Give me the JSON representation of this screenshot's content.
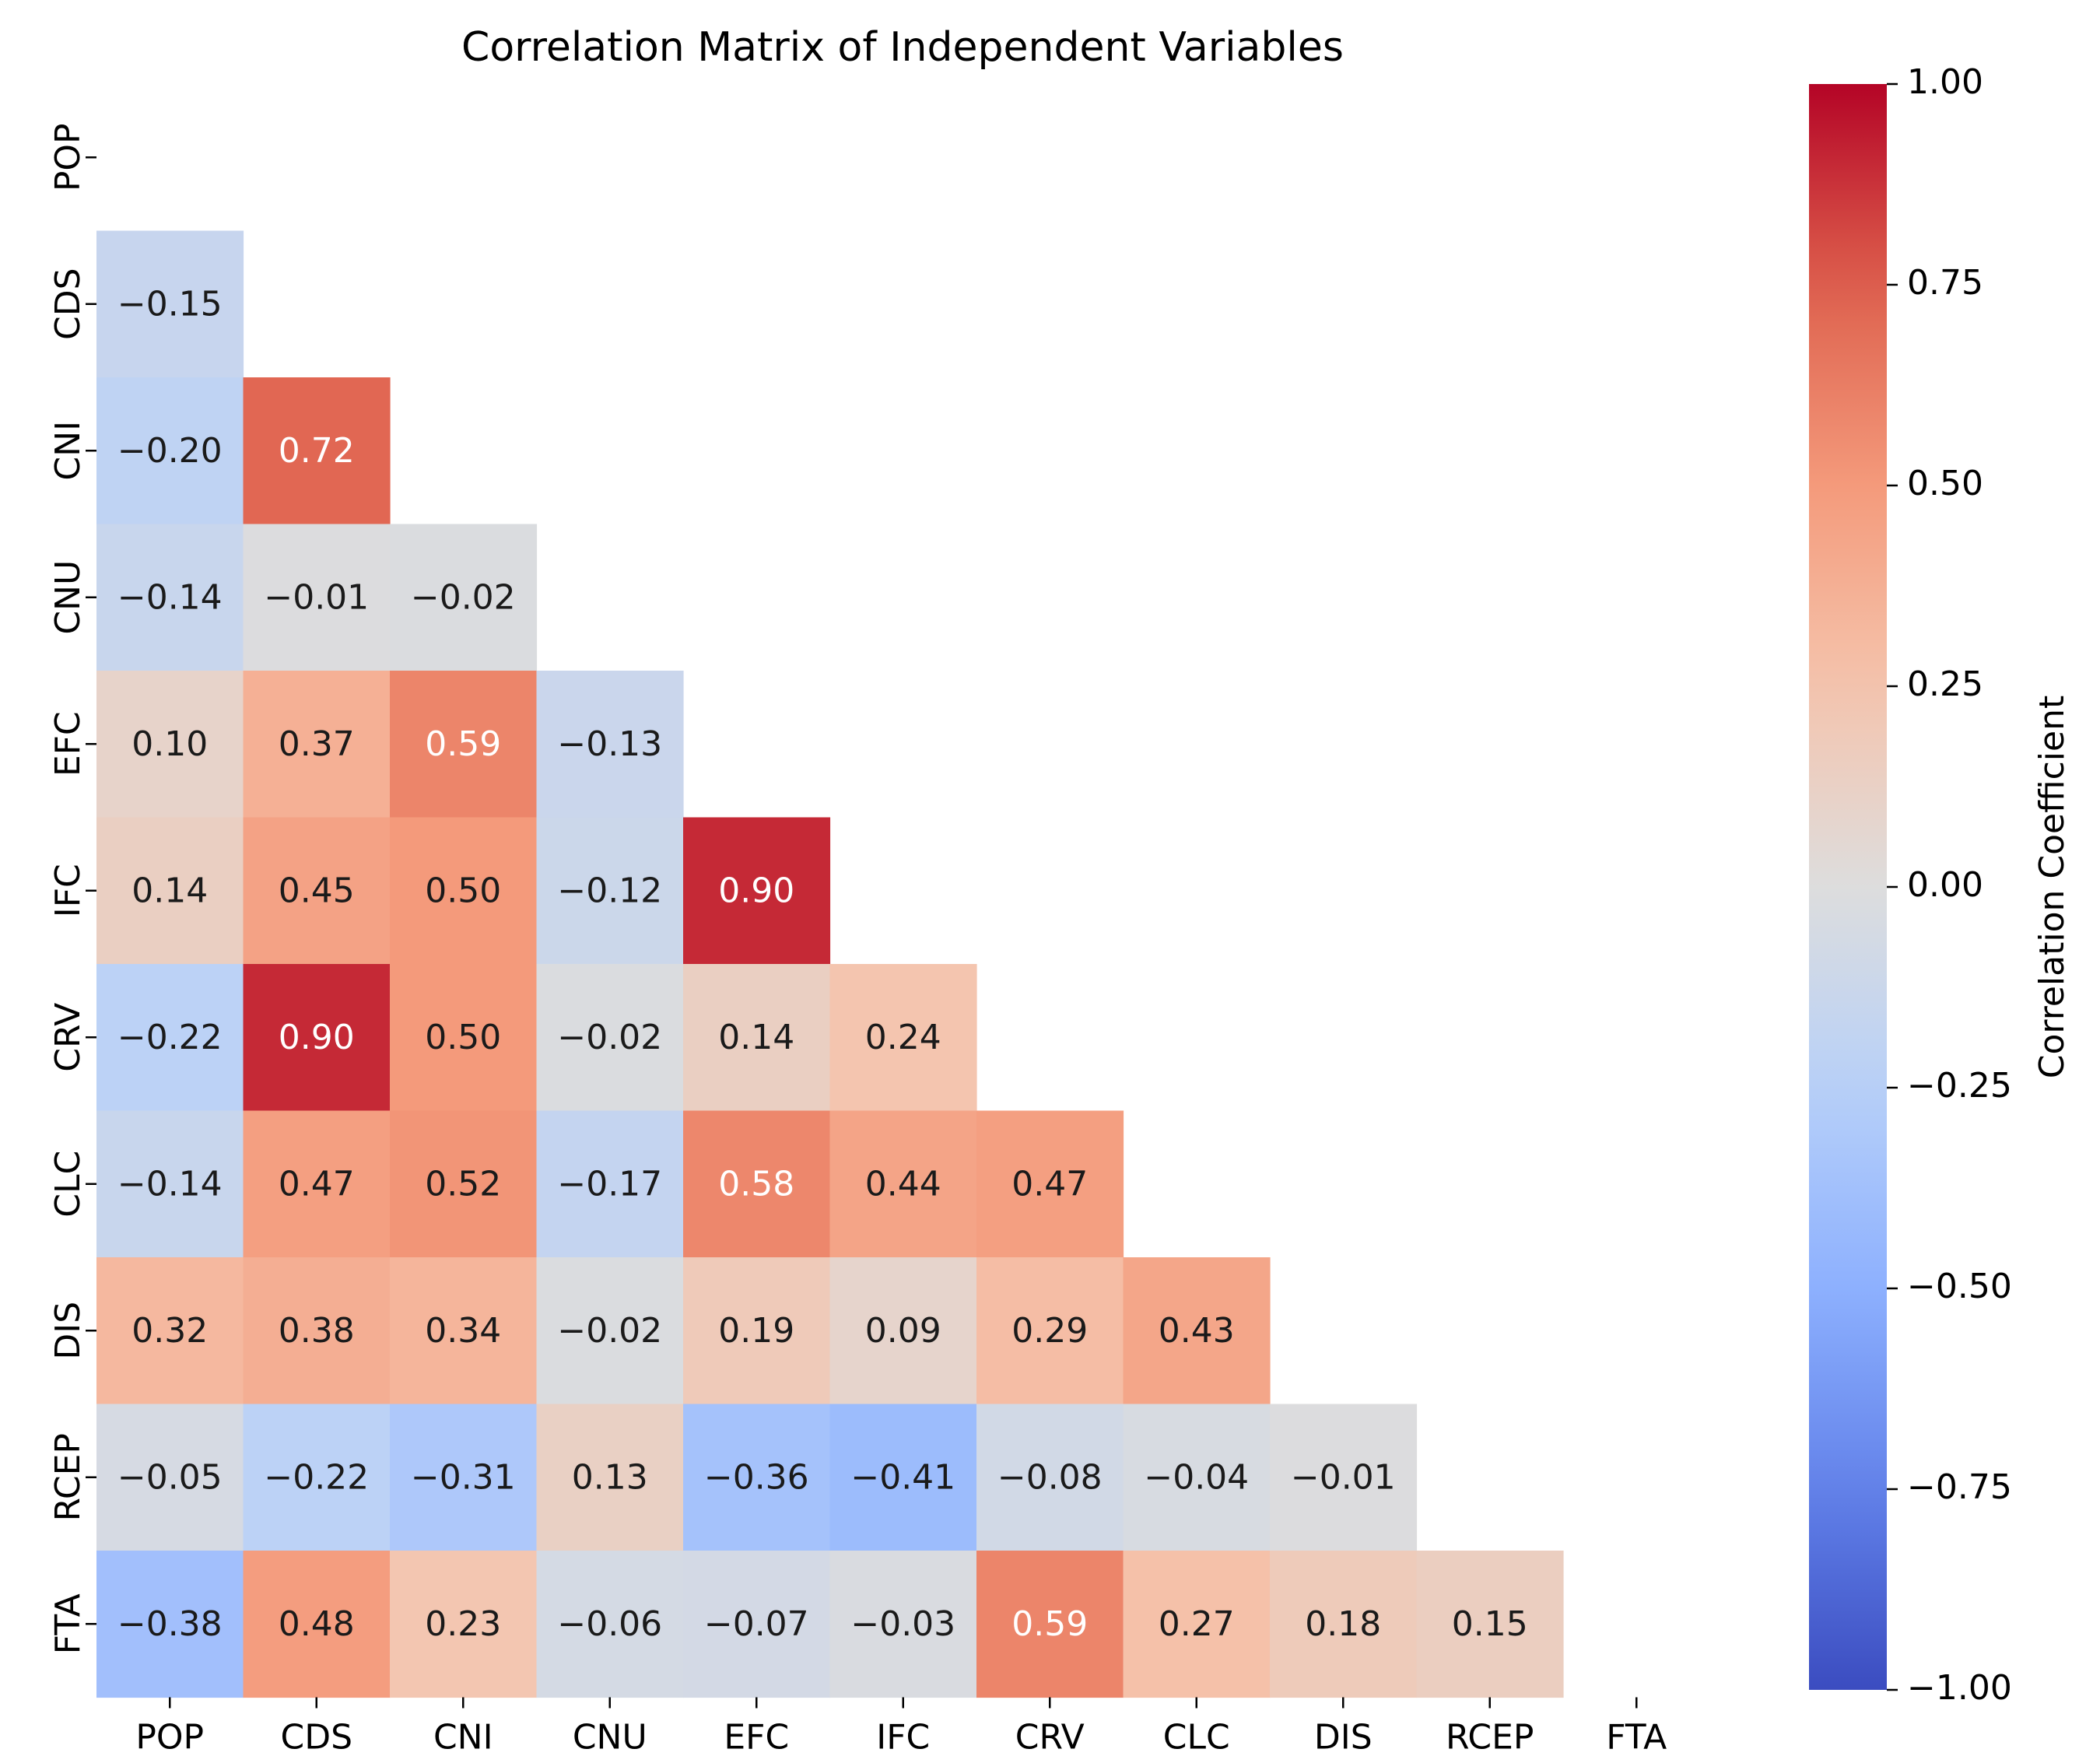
{
  "chart_data": {
    "type": "heatmap",
    "title": "Correlation Matrix of Independent Variables",
    "variables": [
      "POP",
      "CDS",
      "CNI",
      "CNU",
      "EFC",
      "IFC",
      "CRV",
      "CLC",
      "DIS",
      "RCEP",
      "FTA"
    ],
    "mask": "upper-triangle-including-diagonal",
    "matrix": [
      [],
      [
        -0.15
      ],
      [
        -0.2,
        0.72
      ],
      [
        -0.14,
        -0.01,
        -0.02
      ],
      [
        0.1,
        0.37,
        0.59,
        -0.13
      ],
      [
        0.14,
        0.45,
        0.5,
        -0.12,
        0.9
      ],
      [
        -0.22,
        0.9,
        0.5,
        -0.02,
        0.14,
        0.24
      ],
      [
        -0.14,
        0.47,
        0.52,
        -0.17,
        0.58,
        0.44,
        0.47
      ],
      [
        0.32,
        0.38,
        0.34,
        -0.02,
        0.19,
        0.09,
        0.29,
        0.43
      ],
      [
        -0.05,
        -0.22,
        -0.31,
        0.13,
        -0.36,
        -0.41,
        -0.08,
        -0.04,
        -0.01
      ],
      [
        -0.38,
        0.48,
        0.23,
        -0.06,
        -0.07,
        -0.03,
        0.59,
        0.27,
        0.18,
        0.15
      ]
    ],
    "colormap": "coolwarm",
    "vmin": -1.0,
    "vmax": 1.0,
    "colorbar": {
      "label": "Correlation Coefficient",
      "ticks": [
        1.0,
        0.75,
        0.5,
        0.25,
        0.0,
        -0.25,
        -0.5,
        -0.75,
        -1.0
      ],
      "tick_labels": [
        "1.00",
        "0.75",
        "0.50",
        "0.25",
        "0.00",
        "−0.25",
        "−0.50",
        "−0.75",
        "−1.00"
      ],
      "position": "right"
    }
  }
}
